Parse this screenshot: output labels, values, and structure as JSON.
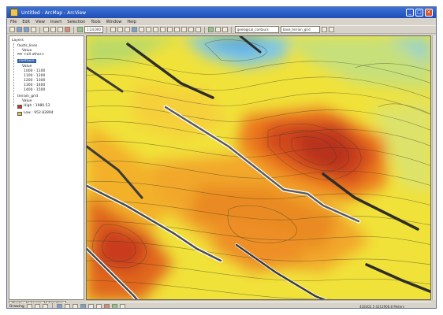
{
  "window": {
    "title": "Untitled - ArcMap - ArcView",
    "min": "_",
    "max": "□",
    "close": "×"
  },
  "menu": [
    "File",
    "Edit",
    "View",
    "Insert",
    "Selection",
    "Tools",
    "Window",
    "Help"
  ],
  "toolbar": {
    "scale_value": "1:24,000",
    "layer_combo": "geological_contours",
    "target_combo": "base_terrain_grid"
  },
  "toc": {
    "root": "Layers",
    "items": [
      {
        "label": "faults_lines",
        "kind": "layer"
      },
      {
        "label": "Value",
        "kind": "label"
      },
      {
        "label": "<all other>",
        "kind": "legend"
      },
      {
        "label": "contours",
        "kind": "selected-layer"
      },
      {
        "label": "Value",
        "kind": "label"
      },
      {
        "label": "1000 - 1100",
        "kind": "legend"
      },
      {
        "label": "1100 - 1200",
        "kind": "legend"
      },
      {
        "label": "1200 - 1300",
        "kind": "legend"
      },
      {
        "label": "1300 - 1400",
        "kind": "legend"
      },
      {
        "label": "1400 - 1500",
        "kind": "legend"
      },
      {
        "label": "terrain_grid",
        "kind": "layer"
      },
      {
        "label": "Value",
        "kind": "label"
      },
      {
        "label": "High : 1980.53",
        "kind": "legend-high"
      },
      {
        "label": "Low : 952.82894",
        "kind": "legend-low"
      }
    ],
    "tabs": [
      "Display",
      "Source",
      "Selection"
    ]
  },
  "status": {
    "drawing_label": "Drawing",
    "coords": "418302.5  4213906.8 Meters"
  },
  "colors": {
    "title": "#2457c5",
    "selection": "#2f5fb3",
    "high": "#c83a1e",
    "low": "#4aa0e6",
    "mid": "#f3e532"
  }
}
